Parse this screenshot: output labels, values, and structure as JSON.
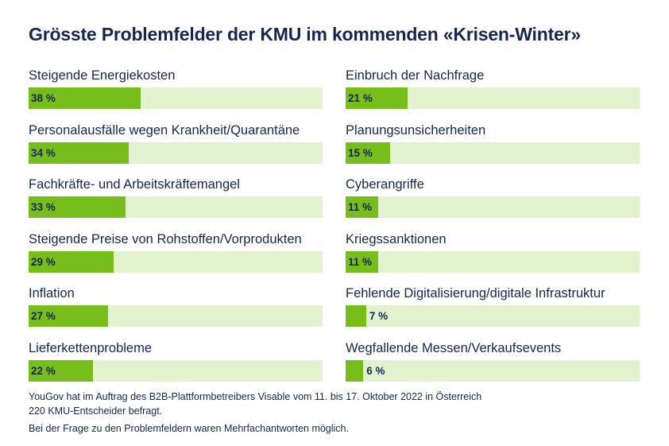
{
  "title": "Grösste Problemfelder der KMU im kommenden «Krisen-Winter»",
  "chart_data": {
    "type": "bar",
    "orientation": "horizontal",
    "title": "Grösste Problemfelder der KMU im kommenden «Krisen-Winter»",
    "xlim": [
      0,
      100
    ],
    "unit": "%",
    "columns": [
      {
        "categories": [
          "Steigende Energiekosten",
          "Personalausfälle wegen Krankheit/Quarantäne",
          "Fachkräfte- und Arbeitskräftemangel",
          "Steigende Preise von Rohstoffen/Vorprodukten",
          "Inflation",
          "Lieferkettenprobleme"
        ],
        "values": [
          38,
          34,
          33,
          29,
          27,
          22
        ],
        "labels": [
          "38 %",
          "34 %",
          "33 %",
          "29 %",
          "27 %",
          "22 %"
        ]
      },
      {
        "categories": [
          "Einbruch der Nachfrage",
          "Planungsunsicherheiten",
          "Cyberangriffe",
          "Kriegssanktionen",
          "Fehlende Digitalisierung/digitale Infrastruktur",
          "Wegfallende Messen/Verkaufsevents"
        ],
        "values": [
          21,
          15,
          11,
          11,
          7,
          6
        ],
        "labels": [
          "21 %",
          "15 %",
          "11 %",
          "11 %",
          "7 %",
          "6 %"
        ]
      }
    ]
  },
  "notes": [
    "YouGov hat im Auftrag des B2B-Plattformbetreibers Visable vom 11. bis 17. Oktober 2022 in Österreich",
    "220 KMU-Entscheider befragt.",
    "Bei der Frage zu den Problemfeldern waren Mehrfachantworten möglich."
  ],
  "colors": {
    "fill": "#77bd1b",
    "track": "#e2f2cf",
    "text": "#16264f"
  }
}
